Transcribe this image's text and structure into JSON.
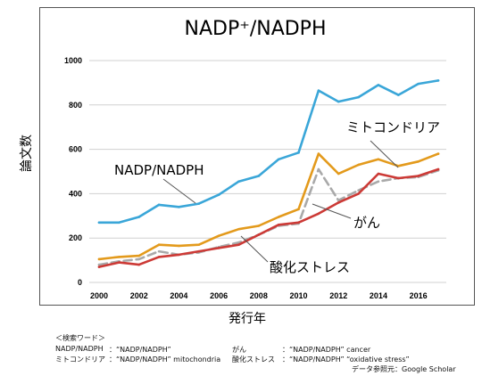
{
  "chart_data": {
    "type": "line",
    "title": "NADP⁺/NADPH",
    "xlabel": "発行年",
    "ylabel": "論文数",
    "xlim": [
      2000,
      2017
    ],
    "ylim": [
      0,
      1000
    ],
    "x_ticks": [
      "2000",
      "2002",
      "2004",
      "2006",
      "2008",
      "2010",
      "2012",
      "2014",
      "2016"
    ],
    "y_ticks": [
      "0",
      "200",
      "400",
      "600",
      "800",
      "1000"
    ],
    "grid": "horizontal",
    "x": [
      2000,
      2001,
      2002,
      2003,
      2004,
      2005,
      2006,
      2007,
      2008,
      2009,
      2010,
      2011,
      2012,
      2013,
      2014,
      2015,
      2016,
      2017
    ],
    "series": [
      {
        "name": "NADP/NADPH",
        "color": "#3aa6d8",
        "dash": "solid",
        "values": [
          270,
          270,
          295,
          350,
          340,
          355,
          395,
          455,
          480,
          555,
          585,
          865,
          815,
          835,
          890,
          845,
          895,
          910
        ]
      },
      {
        "name": "ミトコンドリア",
        "color": "#e39a1c",
        "dash": "solid",
        "values": [
          105,
          115,
          120,
          170,
          165,
          170,
          210,
          240,
          255,
          295,
          330,
          580,
          490,
          530,
          555,
          525,
          545,
          580
        ]
      },
      {
        "name": "がん",
        "color": "#a9a9a9",
        "dash": "dashed",
        "values": [
          80,
          95,
          105,
          140,
          125,
          135,
          160,
          180,
          215,
          255,
          265,
          510,
          370,
          415,
          455,
          470,
          475,
          505
        ]
      },
      {
        "name": "酸化ストレス",
        "color": "#cc3a36",
        "dash": "solid",
        "values": [
          70,
          90,
          80,
          115,
          125,
          140,
          155,
          170,
          215,
          260,
          270,
          310,
          360,
          400,
          490,
          470,
          480,
          510
        ]
      }
    ],
    "annotations": [
      {
        "text": "NADP/NADPH",
        "series": 0
      },
      {
        "text": "ミトコンドリア",
        "series": 1
      },
      {
        "text": "がん",
        "series": 2
      },
      {
        "text": "酸化ストレス",
        "series": 3
      }
    ]
  },
  "notes": {
    "heading": "＜検索ワード＞",
    "left": [
      {
        "term": "NADP/NADPH",
        "query": "：“NADP/NADPH”"
      },
      {
        "term": "ミトコンドリア",
        "query": "：“NADP/NADPH” mitochondria"
      }
    ],
    "right": [
      {
        "term": "がん",
        "query": "：“NADP/NADPH” cancer"
      },
      {
        "term": "酸化ストレス",
        "query": "：“NADP/NADPH” “oxidative stress”"
      }
    ],
    "source": "データ参照元：Google Scholar"
  }
}
